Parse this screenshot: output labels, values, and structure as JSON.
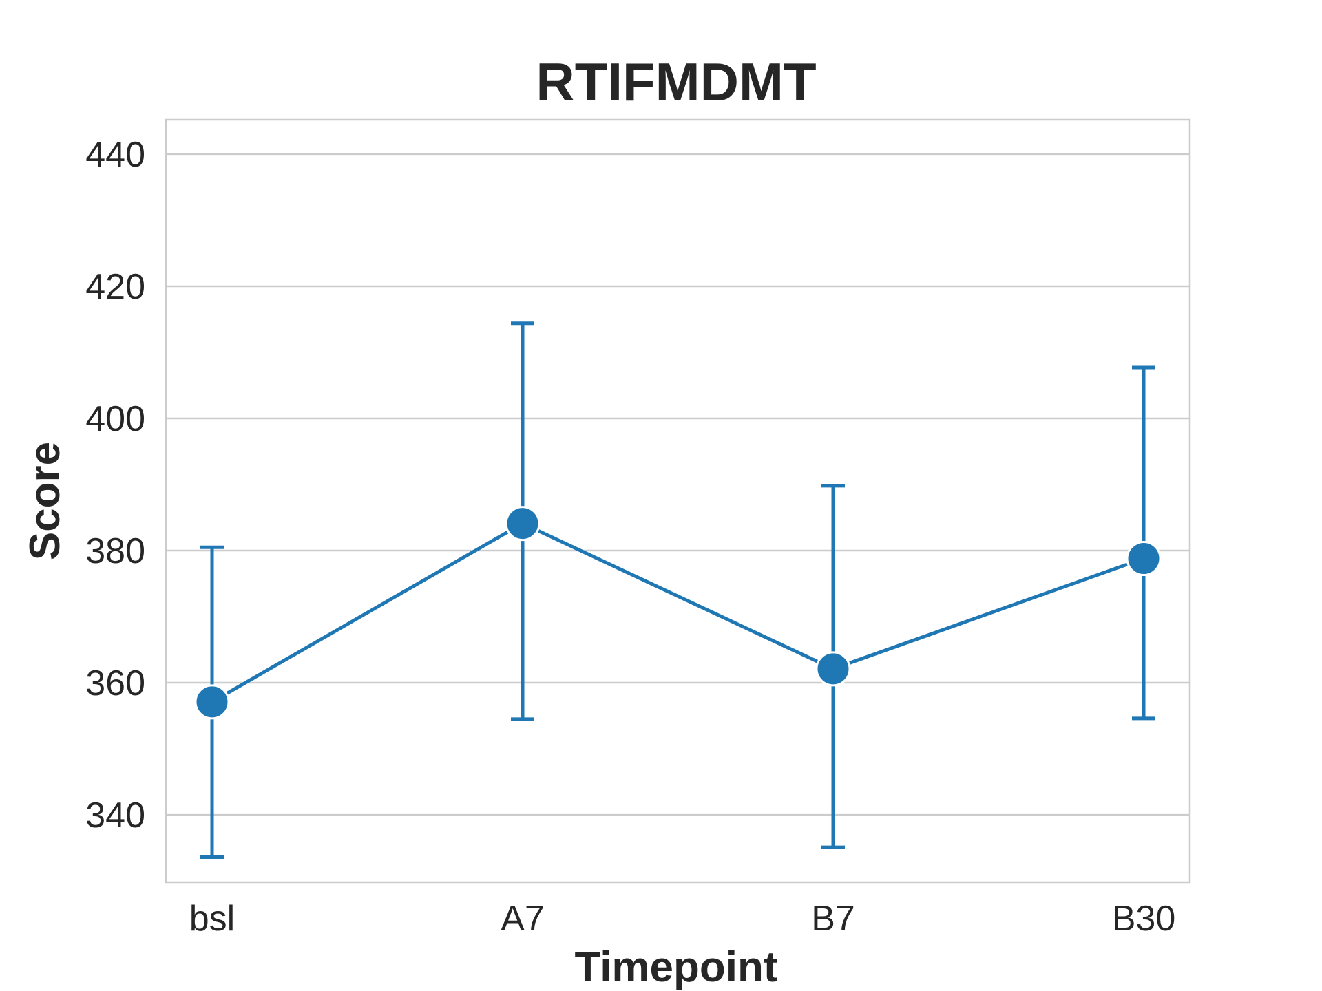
{
  "chart_data": {
    "type": "line",
    "title": "RTIFMDMT",
    "xlabel": "Timepoint",
    "ylabel": "Score",
    "categories": [
      "bsl",
      "A7",
      "B7",
      "B30"
    ],
    "series": [
      {
        "values": [
          357.1,
          384.1,
          362.1,
          378.8
        ],
        "error_low": [
          333.6,
          354.5,
          335.1,
          354.6
        ],
        "error_high": [
          380.5,
          414.4,
          389.8,
          407.7
        ],
        "color": "#1f77b4"
      }
    ],
    "ylim": [
      329.8,
      445.2
    ],
    "yticks": [
      "340",
      "360",
      "380",
      "400",
      "420",
      "440"
    ],
    "grid": "horizontal",
    "legend": "none"
  }
}
